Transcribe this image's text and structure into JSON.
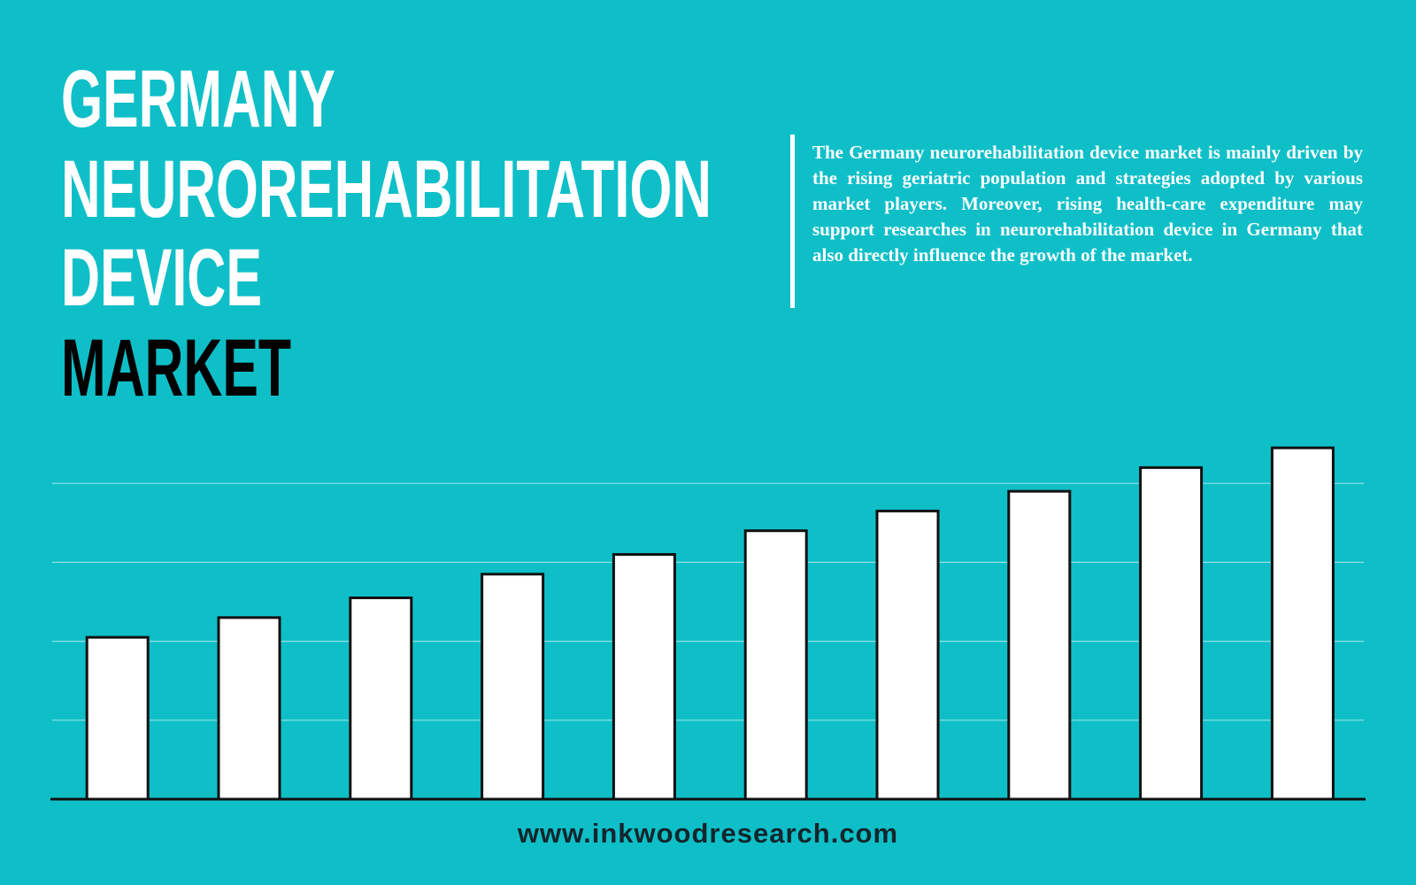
{
  "chart_data": {
    "type": "bar",
    "title_lines": [
      "GERMANY",
      "NEUROREHABILITATION",
      "DEVICE",
      "MARKET"
    ],
    "description": "The Germany neurorehabilitation device market is mainly driven by the rising geriatric population and strategies adopted by various market players. Moreover, rising health-care expenditure may support researches in neurorehabilitation device in Germany that also directly influence the growth of the market.",
    "source": "www.inkwoodresearch.com",
    "categories": [
      null,
      null,
      null,
      null,
      null,
      null,
      null,
      null,
      null,
      null
    ],
    "values": [
      2.05,
      2.3,
      2.55,
      2.85,
      3.1,
      3.4,
      3.65,
      3.9,
      4.2,
      4.45
    ],
    "color": "#ffffff",
    "ylim": [
      0,
      5
    ],
    "gridlines": [
      1,
      2,
      3,
      4
    ],
    "grid": true
  }
}
